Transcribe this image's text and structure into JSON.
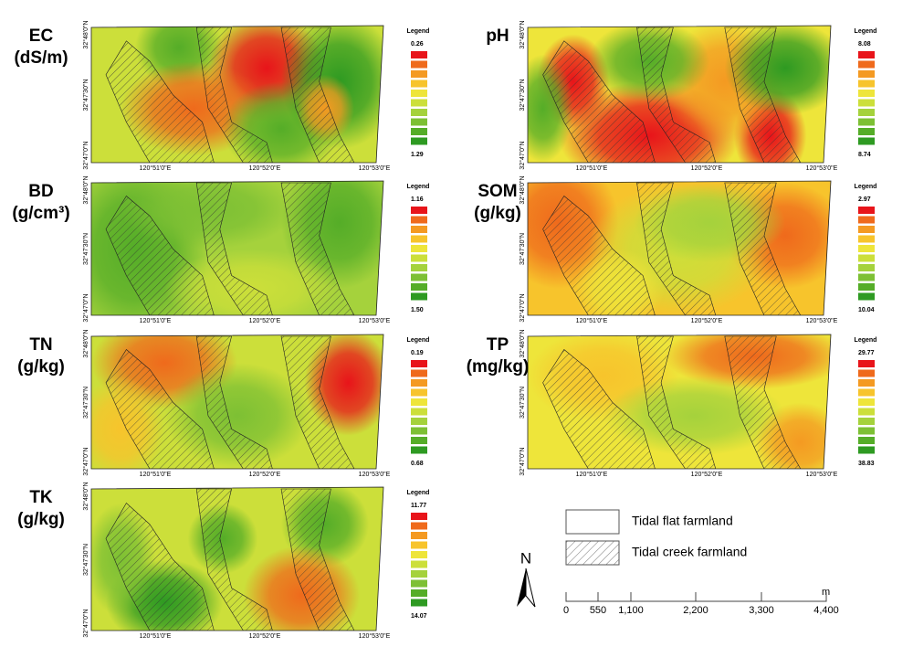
{
  "panels": [
    {
      "name": "EC",
      "unit": "(dS/m)",
      "legend_title": "Legend",
      "legend_top": "0.26",
      "legend_bottom": "1.29"
    },
    {
      "name": "pH",
      "unit": null,
      "legend_title": "Legend",
      "legend_top": "8.08",
      "legend_bottom": "8.74"
    },
    {
      "name": "BD",
      "unit": "(g/cm³)",
      "legend_title": "Legend",
      "legend_top": "1.16",
      "legend_bottom": "1.50"
    },
    {
      "name": "SOM",
      "unit": "(g/kg)",
      "legend_title": "Legend",
      "legend_top": "2.97",
      "legend_bottom": "10.04"
    },
    {
      "name": "TN",
      "unit": "(g/kg)",
      "legend_title": "Legend",
      "legend_top": "0.19",
      "legend_bottom": "0.68"
    },
    {
      "name": "TP",
      "unit": "(mg/kg)",
      "legend_title": "Legend",
      "legend_top": "29.77",
      "legend_bottom": "38.83"
    },
    {
      "name": "TK",
      "unit": "(g/kg)",
      "legend_title": "Legend",
      "legend_top": "11.77",
      "legend_bottom": "14.07"
    }
  ],
  "lat_labels": [
    "32°48'0\"N",
    "32°47'30\"N",
    "32°47'0\"N"
  ],
  "lon_labels": [
    "120°51'0\"E",
    "120°52'0\"E",
    "120°53'0\"E"
  ],
  "key": {
    "items": [
      "Tidal flat farmland",
      "Tidal creek farmland"
    ]
  },
  "north": "N",
  "scale": {
    "labels": [
      "0",
      "550",
      "1,100",
      "2,200",
      "3,300",
      "4,400"
    ],
    "unit": "m"
  }
}
